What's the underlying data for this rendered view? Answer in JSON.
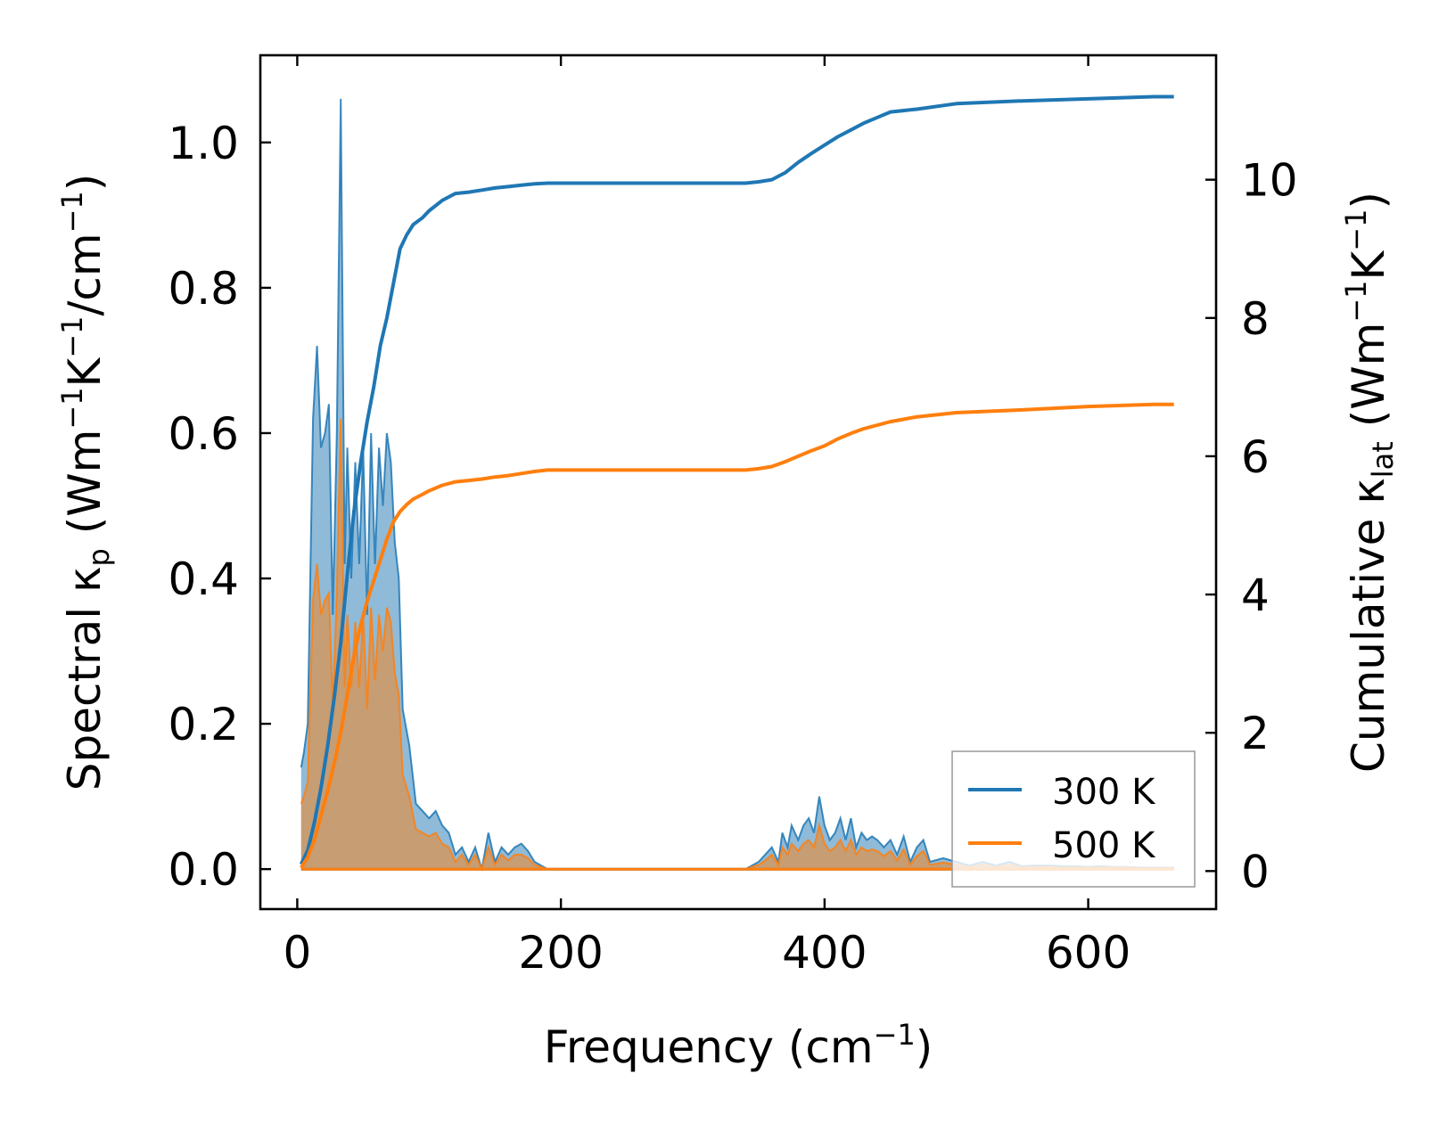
{
  "chart_data": {
    "type": "area+line (dual axis)",
    "xlabel": "Frequency (cm",
    "xlabel_sup": "−1",
    "xlabel_tail": ")",
    "ylabel_left": "Spectral κ",
    "ylabel_left_sub": "p",
    "ylabel_left_tail": " (Wm",
    "ylabel_left_sup1": "−1",
    "ylabel_left_mid": "K",
    "ylabel_left_sup2": "−1",
    "ylabel_left_end": "/cm",
    "ylabel_left_sup3": "−1",
    "ylabel_left_close": ")",
    "ylabel_right": "Cumulative κ",
    "ylabel_right_sub": "lat",
    "ylabel_right_tail": " (Wm",
    "ylabel_right_sup1": "−1",
    "ylabel_right_mid": "K",
    "ylabel_right_sup2": "−1",
    "ylabel_right_close": ")",
    "xlim": [
      -28,
      697
    ],
    "ylim_left": [
      -0.055,
      1.12
    ],
    "ylim_right": [
      -0.55,
      11.8
    ],
    "x_ticks": [
      0,
      200,
      400,
      600
    ],
    "x_tick_labels": [
      "0",
      "200",
      "400",
      "600"
    ],
    "y_left_ticks": [
      0.0,
      0.2,
      0.4,
      0.6,
      0.8,
      1.0
    ],
    "y_left_tick_labels": [
      "0.0",
      "0.2",
      "0.4",
      "0.6",
      "0.8",
      "1.0"
    ],
    "y_right_ticks": [
      0,
      2,
      4,
      6,
      8,
      10
    ],
    "y_right_tick_labels": [
      "0",
      "2",
      "4",
      "6",
      "8",
      "10"
    ],
    "legend": {
      "placement": "lower-right",
      "entries": [
        {
          "label": "300 K",
          "color": "#1f77b4"
        },
        {
          "label": "500 K",
          "color": "#ff7f0e"
        }
      ]
    },
    "series": [
      {
        "name": "300 K",
        "color": "#1f77b4",
        "spectral": {
          "x": [
            3,
            5,
            8,
            12,
            15,
            18,
            21,
            24,
            27,
            30,
            33,
            36,
            38,
            41,
            44,
            47,
            50,
            53,
            56,
            59,
            62,
            65,
            68,
            71,
            74,
            77,
            80,
            85,
            90,
            95,
            100,
            105,
            110,
            115,
            120,
            125,
            130,
            135,
            140,
            145,
            150,
            155,
            160,
            165,
            170,
            175,
            180,
            185,
            190,
            200,
            250,
            300,
            340,
            345,
            350,
            355,
            360,
            365,
            368,
            372,
            375,
            380,
            384,
            388,
            392,
            396,
            400,
            404,
            408,
            412,
            416,
            420,
            424,
            428,
            432,
            436,
            440,
            445,
            450,
            455,
            460,
            465,
            470,
            475,
            480,
            490,
            500,
            510,
            520,
            530,
            540,
            550,
            560,
            570,
            580,
            590,
            600,
            610,
            620,
            630,
            640,
            650,
            660,
            665
          ],
          "y": [
            0.14,
            0.16,
            0.2,
            0.62,
            0.72,
            0.58,
            0.6,
            0.64,
            0.35,
            0.6,
            1.06,
            0.42,
            0.58,
            0.4,
            0.56,
            0.42,
            0.58,
            0.35,
            0.6,
            0.42,
            0.58,
            0.5,
            0.6,
            0.56,
            0.45,
            0.4,
            0.22,
            0.17,
            0.09,
            0.08,
            0.07,
            0.08,
            0.06,
            0.05,
            0.02,
            0.03,
            0.01,
            0.03,
            0.0,
            0.05,
            0.01,
            0.03,
            0.02,
            0.03,
            0.035,
            0.025,
            0.01,
            0.005,
            0.0,
            0.0,
            0.0,
            0.0,
            0.0,
            0.005,
            0.01,
            0.02,
            0.03,
            0.01,
            0.05,
            0.03,
            0.06,
            0.04,
            0.06,
            0.07,
            0.05,
            0.1,
            0.06,
            0.04,
            0.05,
            0.07,
            0.04,
            0.07,
            0.03,
            0.05,
            0.04,
            0.045,
            0.04,
            0.03,
            0.04,
            0.02,
            0.045,
            0.01,
            0.03,
            0.04,
            0.01,
            0.015,
            0.01,
            0.005,
            0.01,
            0.005,
            0.01,
            0.004,
            0.005,
            0.005,
            0.004,
            0.004,
            0.003,
            0.004,
            0.003,
            0.003,
            0.002,
            0.002,
            0.002,
            0.002
          ]
        },
        "cumulative": {
          "x": [
            3,
            8,
            13,
            18,
            23,
            28,
            33,
            38,
            43,
            48,
            53,
            58,
            63,
            68,
            73,
            78,
            83,
            88,
            95,
            100,
            110,
            120,
            130,
            140,
            150,
            160,
            170,
            180,
            190,
            200,
            250,
            300,
            340,
            350,
            360,
            370,
            380,
            390,
            400,
            410,
            420,
            430,
            440,
            450,
            470,
            500,
            550,
            600,
            650,
            665
          ],
          "y": [
            0.1,
            0.3,
            0.7,
            1.2,
            1.8,
            2.5,
            3.3,
            4.3,
            5.2,
            5.9,
            6.5,
            7.0,
            7.6,
            8.0,
            8.5,
            9.0,
            9.2,
            9.35,
            9.45,
            9.55,
            9.7,
            9.8,
            9.82,
            9.85,
            9.88,
            9.9,
            9.92,
            9.94,
            9.95,
            9.95,
            9.95,
            9.95,
            9.95,
            9.97,
            10.0,
            10.1,
            10.25,
            10.38,
            10.5,
            10.62,
            10.72,
            10.82,
            10.9,
            10.98,
            11.02,
            11.1,
            11.14,
            11.17,
            11.2,
            11.2
          ]
        }
      },
      {
        "name": "500 K",
        "color": "#ff7f0e",
        "spectral": {
          "x": [
            3,
            5,
            8,
            12,
            15,
            18,
            21,
            24,
            27,
            30,
            33,
            36,
            38,
            41,
            44,
            47,
            50,
            53,
            56,
            59,
            62,
            65,
            68,
            71,
            74,
            77,
            80,
            85,
            90,
            95,
            100,
            105,
            110,
            115,
            120,
            125,
            130,
            135,
            140,
            145,
            150,
            155,
            160,
            165,
            170,
            175,
            180,
            185,
            190,
            200,
            250,
            300,
            340,
            345,
            350,
            355,
            360,
            365,
            368,
            372,
            375,
            380,
            384,
            388,
            392,
            396,
            400,
            404,
            408,
            412,
            416,
            420,
            424,
            428,
            432,
            436,
            440,
            445,
            450,
            455,
            460,
            465,
            470,
            475,
            480,
            490,
            500,
            510,
            520,
            530,
            540,
            550,
            560,
            570,
            580,
            590,
            600,
            610,
            620,
            630,
            640,
            650,
            660,
            665
          ],
          "y": [
            0.09,
            0.1,
            0.12,
            0.37,
            0.42,
            0.35,
            0.37,
            0.38,
            0.22,
            0.38,
            0.62,
            0.25,
            0.35,
            0.25,
            0.34,
            0.25,
            0.35,
            0.22,
            0.36,
            0.26,
            0.35,
            0.3,
            0.36,
            0.34,
            0.27,
            0.24,
            0.13,
            0.1,
            0.055,
            0.05,
            0.045,
            0.05,
            0.035,
            0.03,
            0.01,
            0.02,
            0.006,
            0.02,
            0.0,
            0.03,
            0.006,
            0.02,
            0.012,
            0.02,
            0.02,
            0.015,
            0.006,
            0.003,
            0.0,
            0.0,
            0.0,
            0.0,
            0.0,
            0.003,
            0.006,
            0.012,
            0.02,
            0.006,
            0.03,
            0.02,
            0.035,
            0.025,
            0.035,
            0.04,
            0.03,
            0.06,
            0.035,
            0.025,
            0.03,
            0.04,
            0.025,
            0.04,
            0.02,
            0.03,
            0.025,
            0.027,
            0.025,
            0.018,
            0.025,
            0.012,
            0.027,
            0.006,
            0.018,
            0.025,
            0.006,
            0.009,
            0.006,
            0.003,
            0.006,
            0.003,
            0.006,
            0.002,
            0.003,
            0.003,
            0.002,
            0.002,
            0.002,
            0.002,
            0.002,
            0.002,
            0.001,
            0.001,
            0.001,
            0.001
          ]
        },
        "cumulative": {
          "x": [
            3,
            8,
            13,
            18,
            23,
            28,
            33,
            38,
            43,
            48,
            53,
            58,
            63,
            68,
            73,
            78,
            83,
            88,
            95,
            100,
            110,
            120,
            130,
            140,
            150,
            160,
            170,
            180,
            190,
            200,
            250,
            300,
            340,
            350,
            360,
            370,
            380,
            390,
            400,
            410,
            420,
            430,
            440,
            450,
            470,
            500,
            550,
            600,
            650,
            665
          ],
          "y": [
            0.05,
            0.2,
            0.45,
            0.8,
            1.15,
            1.55,
            2.0,
            2.55,
            3.1,
            3.55,
            3.9,
            4.2,
            4.5,
            4.8,
            5.05,
            5.2,
            5.3,
            5.38,
            5.45,
            5.5,
            5.58,
            5.63,
            5.65,
            5.67,
            5.7,
            5.72,
            5.75,
            5.78,
            5.8,
            5.8,
            5.8,
            5.8,
            5.8,
            5.82,
            5.85,
            5.92,
            6.0,
            6.08,
            6.15,
            6.25,
            6.33,
            6.4,
            6.45,
            6.5,
            6.57,
            6.63,
            6.67,
            6.72,
            6.75,
            6.75
          ]
        }
      }
    ]
  }
}
